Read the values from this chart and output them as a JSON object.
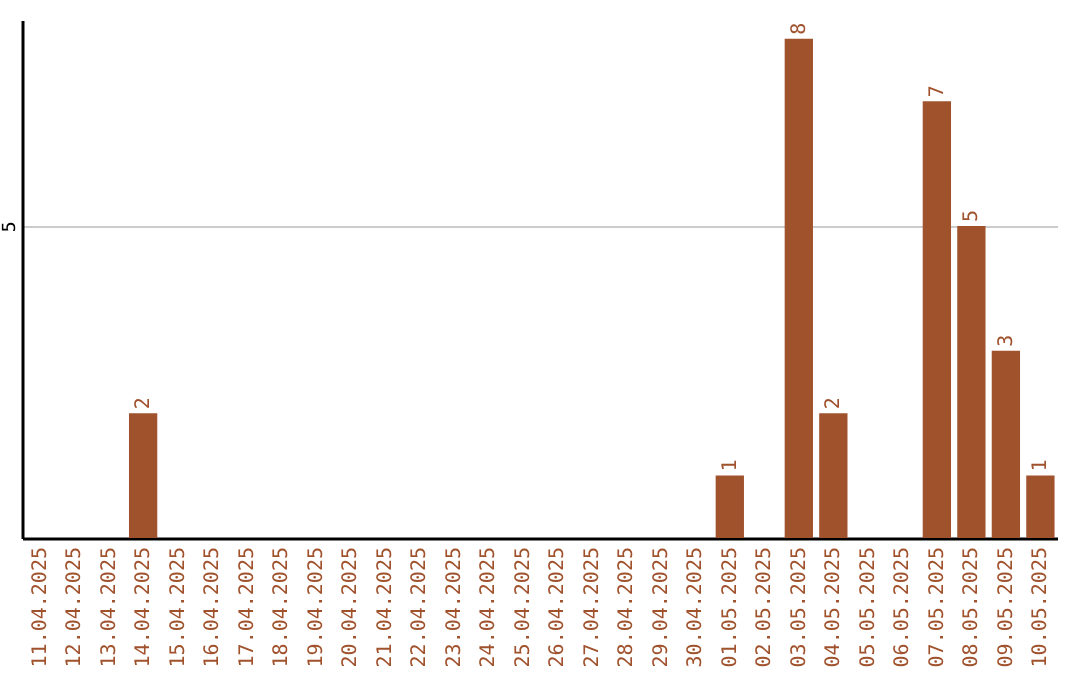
{
  "chart_data": {
    "type": "bar",
    "categories": [
      "11.04.2025",
      "12.04.2025",
      "13.04.2025",
      "14.04.2025",
      "15.04.2025",
      "16.04.2025",
      "17.04.2025",
      "18.04.2025",
      "19.04.2025",
      "20.04.2025",
      "21.04.2025",
      "22.04.2025",
      "23.04.2025",
      "24.04.2025",
      "25.04.2025",
      "26.04.2025",
      "27.04.2025",
      "28.04.2025",
      "29.04.2025",
      "30.04.2025",
      "01.05.2025",
      "02.05.2025",
      "03.05.2025",
      "04.05.2025",
      "05.05.2025",
      "06.05.2025",
      "07.05.2025",
      "08.05.2025",
      "09.05.2025",
      "10.05.2025"
    ],
    "values": [
      0,
      0,
      0,
      2,
      0,
      0,
      0,
      0,
      0,
      0,
      0,
      0,
      0,
      0,
      0,
      0,
      0,
      0,
      0,
      0,
      1,
      0,
      8,
      2,
      0,
      0,
      7,
      5,
      3,
      1
    ],
    "value_labels": [
      null,
      null,
      null,
      "2",
      null,
      null,
      null,
      null,
      null,
      null,
      null,
      null,
      null,
      null,
      null,
      null,
      null,
      null,
      null,
      null,
      "1",
      null,
      "8",
      "2",
      null,
      null,
      "7",
      "5",
      "3",
      "1"
    ],
    "color": "#a0522d",
    "ylim": [
      0,
      8.3
    ],
    "yticks": [
      5
    ],
    "grid": "y"
  }
}
